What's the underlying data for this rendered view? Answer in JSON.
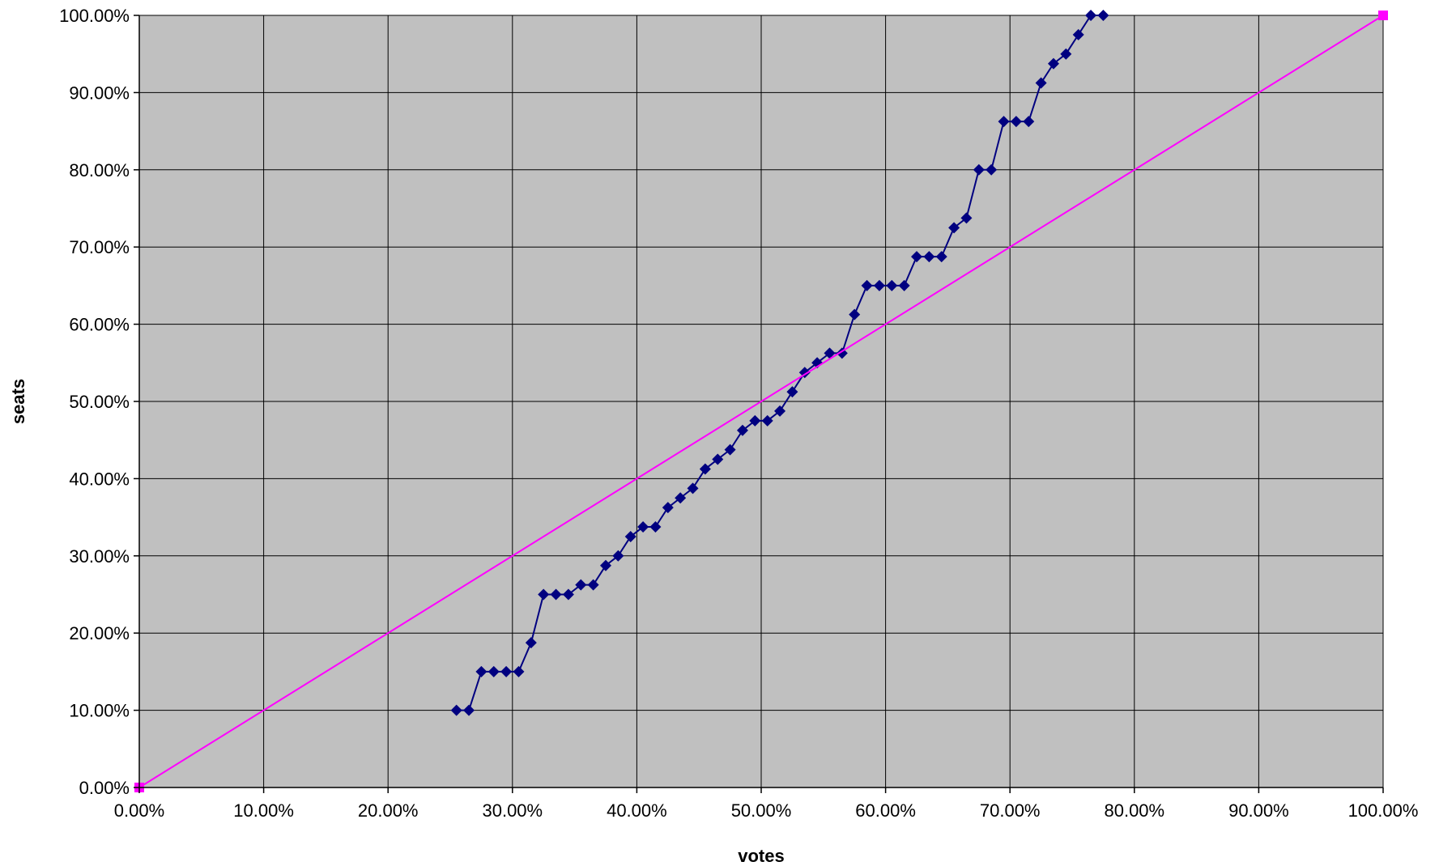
{
  "chart_data": {
    "type": "scatter",
    "title": "",
    "xlabel": "votes",
    "ylabel": "seats",
    "xlim": [
      0,
      100
    ],
    "ylim": [
      0,
      100
    ],
    "x_ticks": [
      "0.00%",
      "10.00%",
      "20.00%",
      "30.00%",
      "40.00%",
      "50.00%",
      "60.00%",
      "70.00%",
      "80.00%",
      "90.00%",
      "100.00%"
    ],
    "y_ticks": [
      "0.00%",
      "10.00%",
      "20.00%",
      "30.00%",
      "40.00%",
      "50.00%",
      "60.00%",
      "70.00%",
      "80.00%",
      "90.00%",
      "100.00%"
    ],
    "grid": true,
    "legend": "none",
    "plot_background": "#c0c0c0",
    "series": [
      {
        "color": "#000080",
        "marker": "diamond",
        "x": [
          25.5,
          26.5,
          27.5,
          28.5,
          29.5,
          30.5,
          31.5,
          32.5,
          33.5,
          34.5,
          35.5,
          36.5,
          37.5,
          38.5,
          39.5,
          40.5,
          41.5,
          42.5,
          43.5,
          44.5,
          45.5,
          46.5,
          47.5,
          48.5,
          49.5,
          50.5,
          51.5,
          52.5,
          53.5,
          54.5,
          55.5,
          56.5,
          57.5,
          58.5,
          59.5,
          60.5,
          61.5,
          62.5,
          63.5,
          64.5,
          65.5,
          66.5,
          67.5,
          68.5,
          69.5,
          70.5,
          71.5,
          72.5,
          73.5,
          74.5,
          75.5,
          76.5,
          77.5
        ],
        "y": [
          10,
          10,
          15,
          15,
          15,
          15,
          18.75,
          25,
          25,
          25,
          26.25,
          26.25,
          28.75,
          30,
          32.5,
          33.75,
          33.75,
          36.25,
          37.5,
          38.75,
          41.25,
          42.5,
          43.75,
          46.25,
          47.5,
          47.5,
          48.75,
          51.25,
          53.75,
          55,
          56.25,
          56.25,
          61.25,
          65,
          65,
          65,
          65,
          68.75,
          68.75,
          68.75,
          72.5,
          73.75,
          80,
          80,
          86.25,
          86.25,
          86.25,
          91.25,
          93.75,
          95,
          97.5,
          100,
          100
        ]
      },
      {
        "color": "#ff00ff",
        "marker": "square",
        "x": [
          0,
          100
        ],
        "y": [
          0,
          100
        ]
      }
    ]
  }
}
